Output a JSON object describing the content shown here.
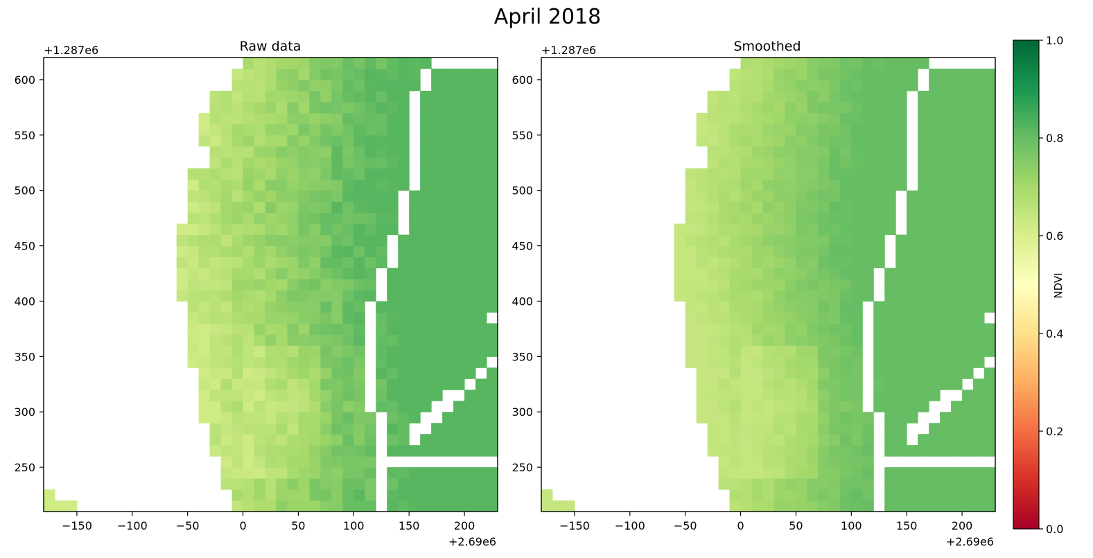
{
  "figure": {
    "title": "April 2018"
  },
  "chart_data": [
    {
      "type": "heatmap",
      "title": "Raw data",
      "x_offset_label": "+2.69e6",
      "y_offset_label": "+1.287e6",
      "xlim": [
        -180,
        230
      ],
      "ylim": [
        210,
        620
      ],
      "x_ticks": [
        -150,
        -100,
        -50,
        0,
        50,
        100,
        150,
        200
      ],
      "y_ticks": [
        250,
        300,
        350,
        400,
        450,
        500,
        550,
        600
      ],
      "x_tick_labels": [
        "−150",
        "−100",
        "−50",
        "0",
        "50",
        "100",
        "150",
        "200"
      ],
      "y_tick_labels": [
        "250",
        "300",
        "350",
        "400",
        "450",
        "500",
        "550",
        "600"
      ],
      "pixel_size": 10,
      "value_range": [
        0.0,
        1.0
      ],
      "typical_value_range": [
        0.62,
        0.82
      ],
      "colormap": "RdYlGn"
    },
    {
      "type": "heatmap",
      "title": "Smoothed",
      "x_offset_label": "+2.69e6",
      "y_offset_label": "+1.287e6",
      "xlim": [
        -180,
        230
      ],
      "ylim": [
        210,
        620
      ],
      "x_ticks": [
        -150,
        -100,
        -50,
        0,
        50,
        100,
        150,
        200
      ],
      "y_ticks": [
        250,
        300,
        350,
        400,
        450,
        500,
        550,
        600
      ],
      "x_tick_labels": [
        "−150",
        "−100",
        "−50",
        "0",
        "50",
        "100",
        "150",
        "200"
      ],
      "y_tick_labels": [
        "250",
        "300",
        "350",
        "400",
        "450",
        "500",
        "550",
        "600"
      ],
      "pixel_size": 10,
      "value_range": [
        0.0,
        1.0
      ],
      "typical_value_range": [
        0.64,
        0.8
      ],
      "colormap": "RdYlGn"
    }
  ],
  "colorbar": {
    "label": "NDVI",
    "range": [
      0.0,
      1.0
    ],
    "ticks": [
      0.0,
      0.2,
      0.4,
      0.6,
      0.8,
      1.0
    ],
    "tick_labels": [
      "0.0",
      "0.2",
      "0.4",
      "0.6",
      "0.8",
      "1.0"
    ],
    "colormap": "RdYlGn",
    "colors": [
      "#a50026",
      "#d73027",
      "#f46d43",
      "#fdae61",
      "#fee08b",
      "#ffffbf",
      "#d9ef8b",
      "#a6d96a",
      "#66bd63",
      "#1a9850",
      "#006837"
    ]
  }
}
